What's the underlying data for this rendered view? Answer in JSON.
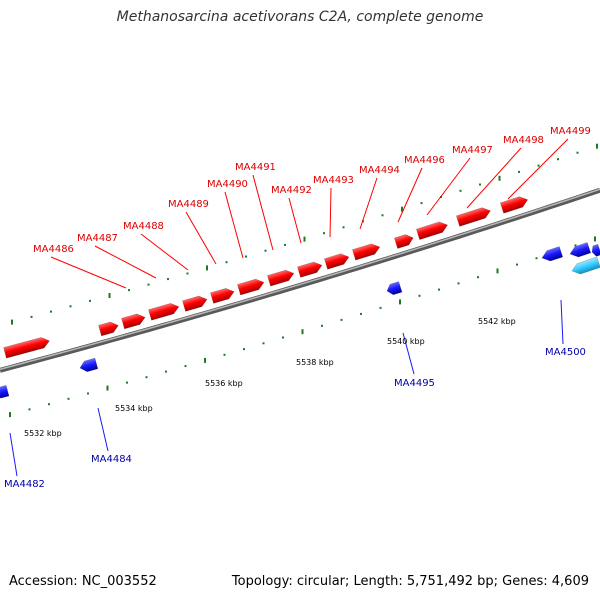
{
  "title": "Methanosarcina acetivorans C2A, complete genome",
  "footer": {
    "accession": "Accession: NC_003552",
    "topology": "Topology: circular; Length: 5,751,492 bp; Genes: 4,609"
  },
  "colors": {
    "forward_gene": "#ff0000",
    "reverse_gene": "#1a1aff",
    "rna_gene": "#33ccff",
    "backbone": "#888888",
    "tick": "#1e7a1e",
    "forward_label": "#dd0000",
    "reverse_label": "#0000aa"
  },
  "scale_labels": [
    "5532 kbp",
    "5534 kbp",
    "5536 kbp",
    "5538 kbp",
    "5540 kbp",
    "5542 kbp"
  ],
  "forward_genes": [
    "MA4486",
    "MA4487",
    "MA4488",
    "MA4489",
    "MA4490",
    "MA4491",
    "MA4492",
    "MA4493",
    "MA4494",
    "MA4496",
    "MA4497",
    "MA4498",
    "MA4499"
  ],
  "reverse_genes": [
    "MA4482",
    "MA4484",
    "MA4495",
    "MA4500"
  ]
}
